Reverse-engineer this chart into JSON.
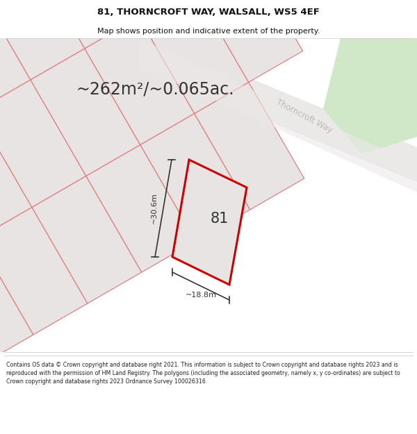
{
  "title_line1": "81, THORNCROFT WAY, WALSALL, WS5 4EF",
  "title_line2": "Map shows position and indicative extent of the property.",
  "area_text": "~262m²/~0.065ac.",
  "street_label": "Thorncroft Way",
  "property_number": "81",
  "dim_width": "~18.8m",
  "dim_height": "~30.6m",
  "footer_text": "Contains OS data © Crown copyright and database right 2021. This information is subject to Crown copyright and database rights 2023 and is reproduced with the permission of HM Land Registry. The polygons (including the associated geometry, namely x, y co-ordinates) are subject to Crown copyright and database rights 2023 Ordnance Survey 100026316.",
  "map_bg": "#f5f3f3",
  "plot_fill": "#e8e4e4",
  "plot_edge": "#e08080",
  "subject_fill": "#e8e4e4",
  "subject_edge": "#cc0000",
  "green_fill": "#d0e8c8",
  "road_fill": "#ebe8e8",
  "street_color": "#bbbbbb",
  "text_color": "#333333",
  "title_color": "#111111",
  "footer_color": "#222222",
  "dim_color": "#333333"
}
